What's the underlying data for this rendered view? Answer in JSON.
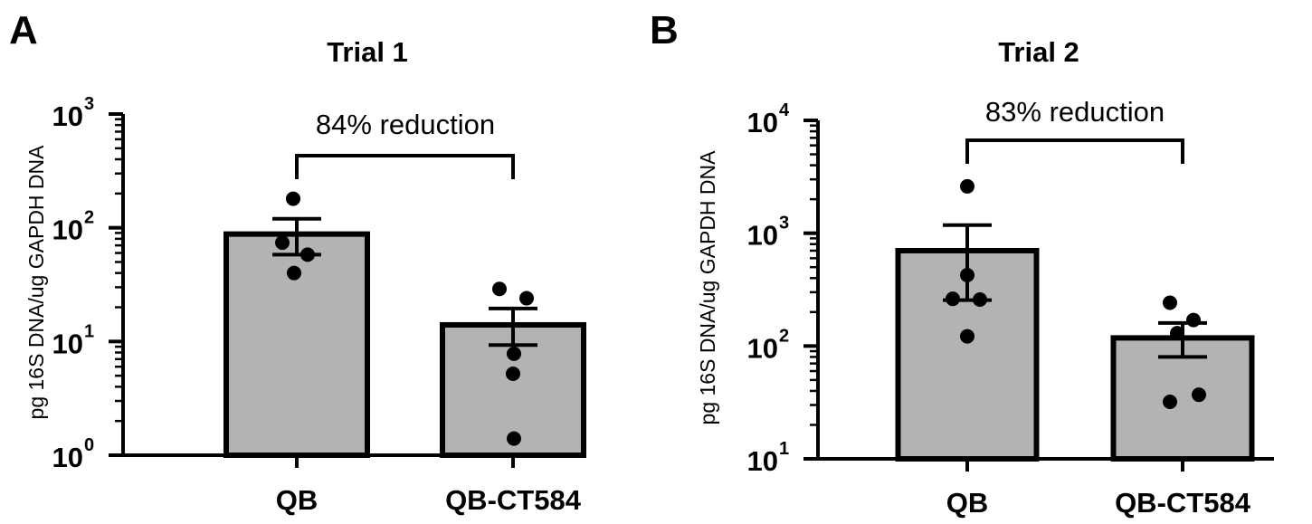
{
  "chart_data": [
    {
      "type": "bar",
      "panel": "A",
      "title": "Trial 1",
      "xlabel": "",
      "ylabel": "pg 16S DNA/ug GAPDH DNA",
      "yscale": "log",
      "ylim": [
        1,
        1000
      ],
      "yticks": [
        {
          "value": 1,
          "base": "10",
          "exp": "0"
        },
        {
          "value": 10,
          "base": "10",
          "exp": "1"
        },
        {
          "value": 100,
          "base": "10",
          "exp": "2"
        },
        {
          "value": 1000,
          "base": "10",
          "exp": "3"
        }
      ],
      "categories": [
        "QB",
        "QB-CT584"
      ],
      "values": [
        88,
        14
      ],
      "error_bars": [
        {
          "low": 58,
          "high": 120
        },
        {
          "low": 9.3,
          "high": 19.5
        }
      ],
      "points": [
        [
          180,
          74,
          58,
          40
        ],
        [
          29,
          24,
          7.8,
          5.2,
          1.4
        ]
      ],
      "annotation": {
        "text": "84% reduction",
        "from": 0,
        "to": 1
      }
    },
    {
      "type": "bar",
      "panel": "B",
      "title": "Trial 2",
      "xlabel": "",
      "ylabel": "pg 16S DNA/ug GAPDH DNA",
      "yscale": "log",
      "ylim": [
        10,
        10000
      ],
      "yticks": [
        {
          "value": 10,
          "base": "10",
          "exp": "1"
        },
        {
          "value": 100,
          "base": "10",
          "exp": "2"
        },
        {
          "value": 1000,
          "base": "10",
          "exp": "3"
        },
        {
          "value": 10000,
          "base": "10",
          "exp": "4"
        }
      ],
      "categories": [
        "QB",
        "QB-CT584"
      ],
      "values": [
        700,
        118
      ],
      "error_bars": [
        {
          "low": 255,
          "high": 1180
        },
        {
          "low": 80,
          "high": 160
        }
      ],
      "points": [
        [
          2600,
          425,
          262,
          258,
          122
        ],
        [
          242,
          170,
          130,
          37,
          32
        ]
      ],
      "annotation": {
        "text": "83% reduction",
        "from": 0,
        "to": 1
      }
    }
  ]
}
